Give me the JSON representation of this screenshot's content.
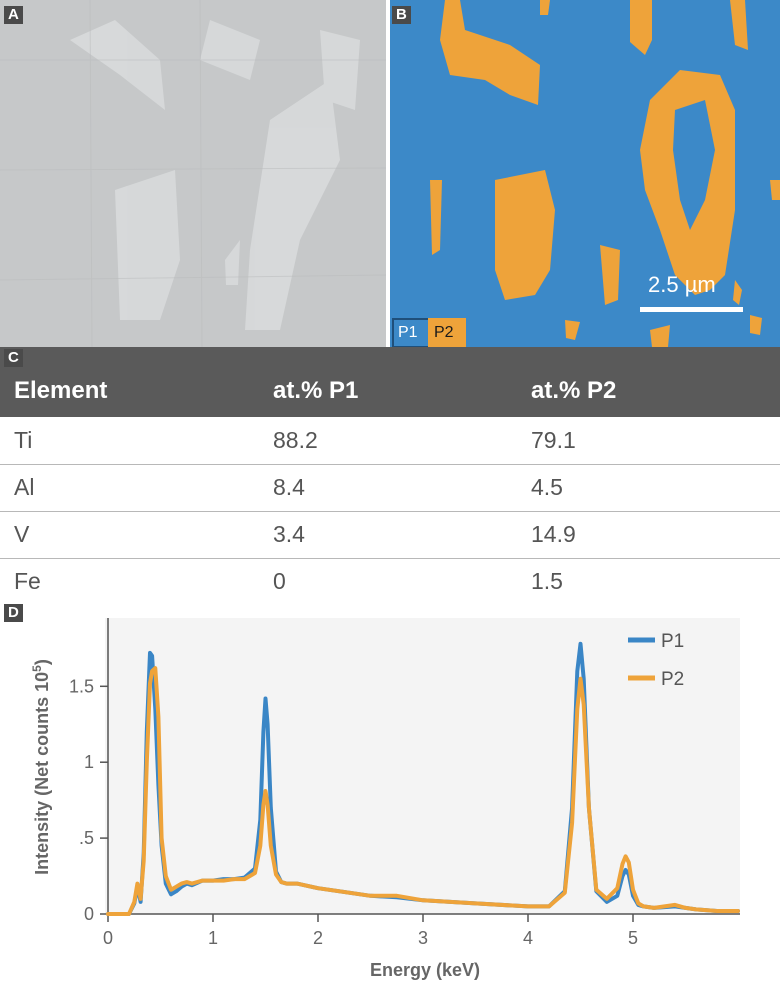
{
  "panel_letters": {
    "a": "A",
    "b": "B",
    "c": "C",
    "d": "D"
  },
  "micrograph": {
    "scale_label": "2.5 µm",
    "phase_keys": [
      {
        "label": "P1",
        "color": "#3c89c8"
      },
      {
        "label": "P2",
        "color": "#eea33a"
      }
    ]
  },
  "table": {
    "headers": [
      "Element",
      "at.% P1",
      "at.% P2"
    ],
    "rows": [
      {
        "element": "Ti",
        "p1": "88.2",
        "p2": "79.1"
      },
      {
        "element": "Al",
        "p1": "8.4",
        "p2": "4.5"
      },
      {
        "element": "V",
        "p1": "3.4",
        "p2": "14.9"
      },
      {
        "element": "Fe",
        "p1": "0",
        "p2": "1.5"
      }
    ]
  },
  "chart_data": {
    "type": "line",
    "title": "",
    "xlabel": "Energy (keV)",
    "ylabel": "Intensity (Net counts 10",
    "ylabel_superscript": "5",
    "ylabel_close": ")",
    "xlim": [
      0,
      6
    ],
    "ylim": [
      0,
      1.95
    ],
    "xticks": [
      0,
      1,
      2,
      3,
      4,
      5
    ],
    "xtick_labels": [
      "0",
      "1",
      "2",
      "3",
      "4",
      "5"
    ],
    "yticks": [
      0,
      0.5,
      1,
      1.5
    ],
    "ytick_labels": [
      "0",
      ".5",
      "1",
      "1.5"
    ],
    "legend_position": "top-right",
    "series": [
      {
        "name": "P1",
        "color": "#3a86c6",
        "x": [
          0,
          0.2,
          0.25,
          0.28,
          0.31,
          0.34,
          0.37,
          0.4,
          0.42,
          0.45,
          0.48,
          0.51,
          0.55,
          0.6,
          0.65,
          0.7,
          0.75,
          0.8,
          0.9,
          1,
          1.1,
          1.2,
          1.3,
          1.4,
          1.45,
          1.48,
          1.5,
          1.52,
          1.55,
          1.6,
          1.65,
          1.7,
          1.8,
          2,
          2.5,
          2.75,
          3,
          3.5,
          4,
          4.2,
          4.35,
          4.42,
          4.47,
          4.5,
          4.53,
          4.58,
          4.65,
          4.75,
          4.85,
          4.9,
          4.93,
          4.96,
          5,
          5.05,
          5.1,
          5.2,
          5.4,
          5.5,
          5.6,
          5.8,
          6
        ],
        "values": [
          0,
          0,
          0.07,
          0.18,
          0.08,
          0.4,
          1.2,
          1.72,
          1.7,
          1.35,
          0.85,
          0.45,
          0.2,
          0.13,
          0.15,
          0.18,
          0.2,
          0.19,
          0.22,
          0.22,
          0.23,
          0.23,
          0.24,
          0.3,
          0.62,
          1.2,
          1.42,
          1.25,
          0.7,
          0.28,
          0.21,
          0.2,
          0.2,
          0.17,
          0.12,
          0.11,
          0.09,
          0.07,
          0.05,
          0.05,
          0.15,
          0.7,
          1.6,
          1.78,
          1.55,
          0.7,
          0.15,
          0.08,
          0.12,
          0.25,
          0.29,
          0.26,
          0.12,
          0.06,
          0.05,
          0.04,
          0.05,
          0.04,
          0.03,
          0.02,
          0.02
        ]
      },
      {
        "name": "P2",
        "color": "#eea33a",
        "x": [
          0,
          0.2,
          0.25,
          0.28,
          0.31,
          0.34,
          0.37,
          0.4,
          0.42,
          0.45,
          0.48,
          0.51,
          0.55,
          0.6,
          0.65,
          0.7,
          0.75,
          0.8,
          0.9,
          1,
          1.1,
          1.2,
          1.3,
          1.4,
          1.45,
          1.48,
          1.5,
          1.52,
          1.55,
          1.6,
          1.65,
          1.7,
          1.8,
          2,
          2.5,
          2.75,
          3,
          3.5,
          4,
          4.2,
          4.35,
          4.42,
          4.47,
          4.5,
          4.53,
          4.58,
          4.65,
          4.75,
          4.85,
          4.9,
          4.93,
          4.96,
          5,
          5.05,
          5.1,
          5.2,
          5.4,
          5.5,
          5.6,
          5.8,
          6
        ],
        "values": [
          0,
          0,
          0.08,
          0.2,
          0.1,
          0.35,
          1.0,
          1.52,
          1.6,
          1.62,
          1.3,
          0.5,
          0.25,
          0.16,
          0.18,
          0.2,
          0.21,
          0.2,
          0.22,
          0.22,
          0.22,
          0.23,
          0.23,
          0.27,
          0.45,
          0.72,
          0.81,
          0.72,
          0.45,
          0.26,
          0.21,
          0.2,
          0.2,
          0.17,
          0.12,
          0.12,
          0.09,
          0.07,
          0.05,
          0.05,
          0.14,
          0.6,
          1.35,
          1.55,
          1.38,
          0.7,
          0.16,
          0.1,
          0.17,
          0.33,
          0.38,
          0.34,
          0.16,
          0.07,
          0.05,
          0.04,
          0.06,
          0.04,
          0.03,
          0.02,
          0.02
        ]
      }
    ]
  }
}
